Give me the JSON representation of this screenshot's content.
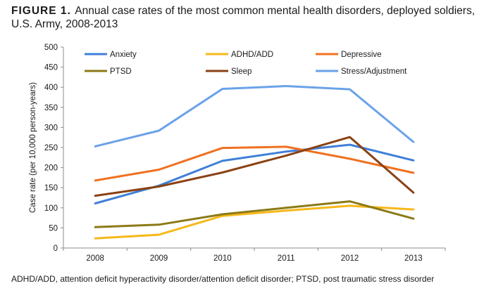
{
  "figure": {
    "label": "FIGURE 1.",
    "title": "Annual case rates of the most common mental health disorders, deployed soldiers, U.S. Army, 2008-2013"
  },
  "footnote": "ADHD/ADD, attention deficit hyperactivity disorder/attention deficit disorder; PTSD, post traumatic stress disorder",
  "chart_data": {
    "type": "line",
    "title": "",
    "xlabel": "",
    "ylabel": "Case rate (per 10,000 person-years)",
    "x": [
      "2008",
      "2009",
      "2010",
      "2011",
      "2012",
      "2013"
    ],
    "ylim": [
      0,
      500
    ],
    "yticks": [
      0,
      50,
      100,
      150,
      200,
      250,
      300,
      350,
      400,
      450,
      500
    ],
    "grid": false,
    "legend_position": "top",
    "series": [
      {
        "name": "Anxiety",
        "color": "#3f7fd9",
        "values": [
          111,
          155,
          217,
          240,
          257,
          218
        ]
      },
      {
        "name": "ADHD/ADD",
        "color": "#f6b81a",
        "values": [
          24,
          33,
          80,
          93,
          105,
          96
        ]
      },
      {
        "name": "Depressive",
        "color": "#f07020",
        "values": [
          168,
          195,
          249,
          252,
          222,
          187
        ]
      },
      {
        "name": "PTSD",
        "color": "#8c7a16",
        "values": [
          52,
          58,
          84,
          100,
          116,
          73
        ]
      },
      {
        "name": "Sleep",
        "color": "#8a4214",
        "values": [
          130,
          153,
          188,
          230,
          276,
          138
        ]
      },
      {
        "name": "Stress/Adjustment",
        "color": "#6aa2e8",
        "values": [
          253,
          292,
          396,
          403,
          395,
          264
        ]
      }
    ]
  }
}
